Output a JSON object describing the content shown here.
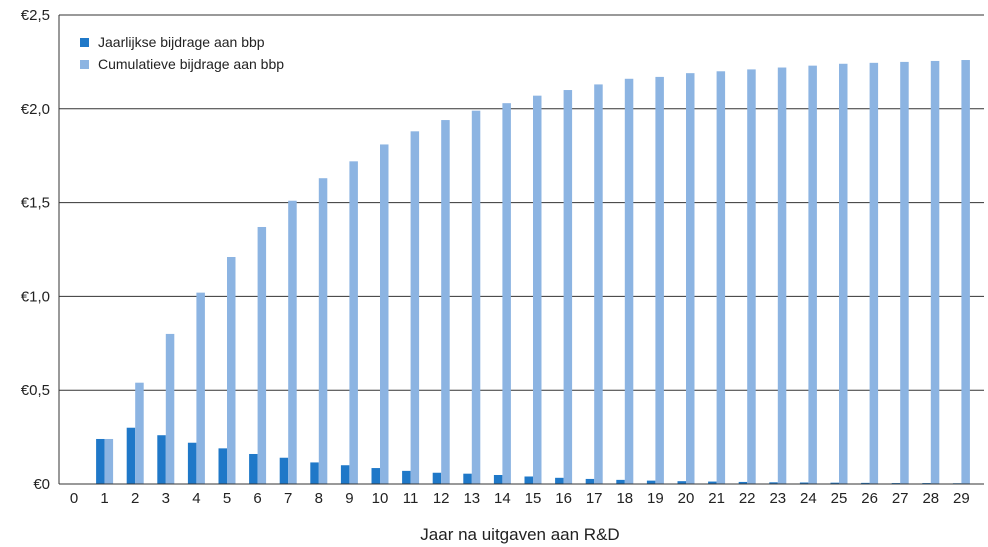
{
  "chart_data": {
    "type": "bar",
    "title": "",
    "xlabel": "Jaar na uitgaven aan R&D",
    "ylabel": "",
    "categories": [
      "0",
      "1",
      "2",
      "3",
      "4",
      "5",
      "6",
      "7",
      "8",
      "9",
      "10",
      "11",
      "12",
      "13",
      "14",
      "15",
      "16",
      "17",
      "18",
      "19",
      "20",
      "21",
      "22",
      "23",
      "24",
      "25",
      "26",
      "27",
      "28",
      "29"
    ],
    "ylim": [
      0,
      2.5
    ],
    "yticks": [
      "€0",
      "€0,5",
      "€1,0",
      "€1,5",
      "€2,0",
      "€2,5"
    ],
    "ytick_values": [
      0,
      0.5,
      1.0,
      1.5,
      2.0,
      2.5
    ],
    "grid": "horizontal",
    "legend_position": "top-left",
    "series": [
      {
        "name": "Jaarlijkse bijdrage aan bbp",
        "color": "#1f78c8",
        "values": [
          0,
          0.24,
          0.3,
          0.26,
          0.22,
          0.19,
          0.16,
          0.14,
          0.115,
          0.1,
          0.085,
          0.07,
          0.06,
          0.055,
          0.048,
          0.04,
          0.033,
          0.027,
          0.022,
          0.018,
          0.015,
          0.013,
          0.011,
          0.009,
          0.008,
          0.007,
          0.006,
          0.005,
          0.005,
          0.004
        ]
      },
      {
        "name": "Cumulatieve bijdrage aan bbp",
        "color": "#8cb4e2",
        "values": [
          0,
          0.24,
          0.54,
          0.8,
          1.02,
          1.21,
          1.37,
          1.51,
          1.63,
          1.72,
          1.81,
          1.88,
          1.94,
          1.99,
          2.03,
          2.07,
          2.1,
          2.13,
          2.16,
          2.17,
          2.19,
          2.2,
          2.21,
          2.22,
          2.23,
          2.24,
          2.245,
          2.25,
          2.255,
          2.26
        ]
      }
    ]
  }
}
